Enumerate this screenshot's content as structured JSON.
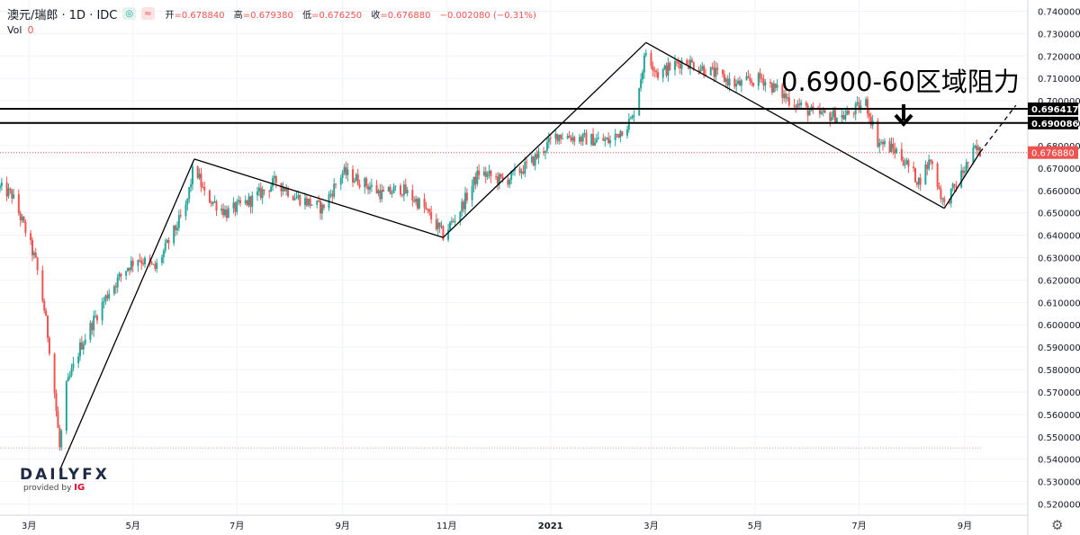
{
  "header": {
    "symbol": "澳元/瑞郎 · 1D · IDC",
    "badge1": "◎",
    "badge2": "≈",
    "open_label": "开",
    "open_value": "=0.678840",
    "high_label": "高",
    "high_value": "=0.679380",
    "low_label": "低",
    "low_value": "=0.676250",
    "close_label": "收",
    "close_value": "=0.676880",
    "change": "−0.002080 (−0.31%)",
    "vol_label": "Vol",
    "vol_value": "0"
  },
  "logo": {
    "brand_a": "DAILY",
    "brand_b": "FX",
    "provided": "provided by",
    "ig": "IG"
  },
  "annotation": "0.6900-60区域阻力",
  "settings_icon": "gear-icon",
  "colors": {
    "up": "#26a69a",
    "down": "#ef5350",
    "current_label": "#ef5350",
    "level_label": "#000000"
  },
  "chart_data": {
    "type": "candlestick",
    "symbol": "AUD/CHF",
    "ylim": [
      0.515,
      0.745
    ],
    "y_ticks": [
      "0.740000",
      "0.730000",
      "0.720000",
      "0.710000",
      "0.700000",
      "0.690000",
      "0.680000",
      "0.670000",
      "0.660000",
      "0.650000",
      "0.640000",
      "0.630000",
      "0.620000",
      "0.610000",
      "0.600000",
      "0.590000",
      "0.580000",
      "0.570000",
      "0.560000",
      "0.550000",
      "0.540000",
      "0.530000",
      "0.520000"
    ],
    "x_ticks": [
      {
        "label": "3月",
        "date": "2020-03-01"
      },
      {
        "label": "5月",
        "date": "2020-05-01"
      },
      {
        "label": "7月",
        "date": "2020-07-01"
      },
      {
        "label": "9月",
        "date": "2020-09-01"
      },
      {
        "label": "11月",
        "date": "2020-11-01"
      },
      {
        "label": "2021",
        "date": "2021-01-01"
      },
      {
        "label": "3月",
        "date": "2021-03-01"
      },
      {
        "label": "5月",
        "date": "2021-05-01"
      },
      {
        "label": "7月",
        "date": "2021-07-01"
      },
      {
        "label": "9月",
        "date": "2021-09-01"
      }
    ],
    "x_range": [
      "2020-02-13",
      "2021-10-08"
    ],
    "price_path": [
      [
        "2020-02-13",
        0.661
      ],
      [
        "2020-02-20",
        0.658
      ],
      [
        "2020-02-28",
        0.642
      ],
      [
        "2020-03-05",
        0.628
      ],
      [
        "2020-03-10",
        0.607
      ],
      [
        "2020-03-13",
        0.59
      ],
      [
        "2020-03-16",
        0.57
      ],
      [
        "2020-03-19",
        0.545
      ],
      [
        "2020-03-23",
        0.572
      ],
      [
        "2020-03-31",
        0.59
      ],
      [
        "2020-04-08",
        0.602
      ],
      [
        "2020-04-17",
        0.615
      ],
      [
        "2020-04-28",
        0.626
      ],
      [
        "2020-05-04",
        0.63
      ],
      [
        "2020-05-14",
        0.625
      ],
      [
        "2020-05-22",
        0.637
      ],
      [
        "2020-06-01",
        0.652
      ],
      [
        "2020-06-06",
        0.672
      ],
      [
        "2020-06-12",
        0.658
      ],
      [
        "2020-06-25",
        0.65
      ],
      [
        "2020-07-10",
        0.656
      ],
      [
        "2020-07-24",
        0.664
      ],
      [
        "2020-08-05",
        0.657
      ],
      [
        "2020-08-20",
        0.652
      ],
      [
        "2020-09-01",
        0.668
      ],
      [
        "2020-09-12",
        0.664
      ],
      [
        "2020-09-25",
        0.658
      ],
      [
        "2020-10-05",
        0.661
      ],
      [
        "2020-10-18",
        0.653
      ],
      [
        "2020-10-30",
        0.64
      ],
      [
        "2020-11-08",
        0.65
      ],
      [
        "2020-11-20",
        0.668
      ],
      [
        "2020-12-05",
        0.664
      ],
      [
        "2020-12-20",
        0.672
      ],
      [
        "2021-01-05",
        0.685
      ],
      [
        "2021-01-20",
        0.683
      ],
      [
        "2021-02-05",
        0.682
      ],
      [
        "2021-02-18",
        0.692
      ],
      [
        "2021-02-26",
        0.722
      ],
      [
        "2021-03-05",
        0.712
      ],
      [
        "2021-03-20",
        0.718
      ],
      [
        "2021-04-05",
        0.713
      ],
      [
        "2021-04-20",
        0.707
      ],
      [
        "2021-05-05",
        0.71
      ],
      [
        "2021-05-20",
        0.701
      ],
      [
        "2021-06-05",
        0.694
      ],
      [
        "2021-06-22",
        0.693
      ],
      [
        "2021-07-05",
        0.699
      ],
      [
        "2021-07-12",
        0.682
      ],
      [
        "2021-07-24",
        0.677
      ],
      [
        "2021-08-05",
        0.664
      ],
      [
        "2021-08-12",
        0.674
      ],
      [
        "2021-08-20",
        0.653
      ],
      [
        "2021-08-30",
        0.667
      ],
      [
        "2021-09-07",
        0.678
      ],
      [
        "2021-09-10",
        0.677
      ]
    ],
    "horizontal_levels": [
      {
        "value": 0.696417,
        "label": "0.696417"
      },
      {
        "value": 0.690086,
        "label": "0.690086"
      }
    ],
    "current_price": {
      "value": 0.67688,
      "label": "0.676880"
    },
    "dotted_level": 0.545,
    "trendlines": [
      {
        "from": [
          "2020-03-19",
          0.535
        ],
        "to": [
          "2020-06-06",
          0.674
        ]
      },
      {
        "from": [
          "2020-06-06",
          0.674
        ],
        "to": [
          "2020-10-30",
          0.639
        ]
      },
      {
        "from": [
          "2020-10-30",
          0.639
        ],
        "to": [
          "2021-02-26",
          0.726
        ]
      },
      {
        "from": [
          "2021-02-26",
          0.726
        ],
        "to": [
          "2021-08-20",
          0.652
        ]
      },
      {
        "from": [
          "2021-08-20",
          0.652
        ],
        "to": [
          "2021-09-10",
          0.677
        ]
      },
      {
        "from": [
          "2021-09-10",
          0.677
        ],
        "to": [
          "2021-10-01",
          0.698
        ],
        "dashed": true
      }
    ]
  }
}
